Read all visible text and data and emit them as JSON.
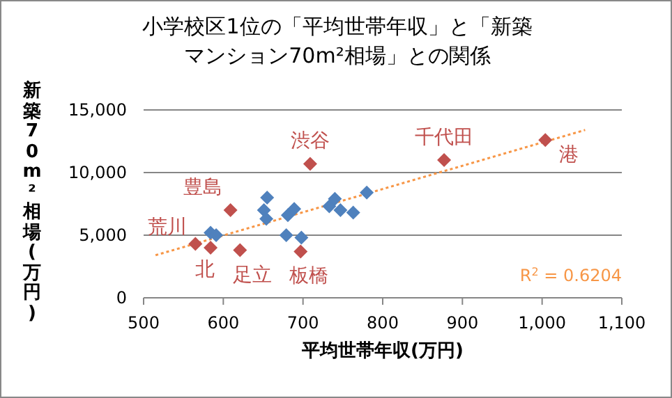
{
  "chart_data": {
    "type": "scatter",
    "title": "小学校区1位の「平均世帯年収」と「新築マンション70m²相場」との関係",
    "xlabel": "平均世帯年収(万円)",
    "ylabel": "新築70m²相場(万円)",
    "xlim": [
      500,
      1100
    ],
    "xticks": [
      {
        "value": 500,
        "label": "500"
      },
      {
        "value": 600,
        "label": "600"
      },
      {
        "value": 700,
        "label": "700"
      },
      {
        "value": 800,
        "label": "800"
      },
      {
        "value": 900,
        "label": "900"
      },
      {
        "value": 1000,
        "label": "1,000"
      },
      {
        "value": 1100,
        "label": "1,100"
      }
    ],
    "ylim": [
      0,
      15000
    ],
    "yticks": [
      {
        "value": 0,
        "label": "0"
      },
      {
        "value": 5000,
        "label": "5,000"
      },
      {
        "value": 10000,
        "label": "10,000"
      },
      {
        "value": 15000,
        "label": "15,000"
      }
    ],
    "grid": "y",
    "marker": "diamond",
    "series": [
      {
        "color": "#4f81bd",
        "x": [
          584,
          591,
          655,
          651,
          654,
          679,
          698,
          681,
          689,
          733,
          740,
          747,
          763,
          780
        ],
        "values": [
          5200,
          5000,
          8000,
          7000,
          6300,
          5000,
          4800,
          6600,
          7100,
          7300,
          7900,
          7000,
          6800,
          8400
        ]
      },
      {
        "color": "#c0504d",
        "x": [
          709,
          609,
          565,
          584,
          621,
          697,
          877,
          1004
        ],
        "values": [
          10700,
          7000,
          4300,
          4000,
          3800,
          3700,
          11000,
          12600
        ]
      },
      {
        "type": "line",
        "color": "#f79646",
        "line_style": "dotted",
        "marker": "none",
        "x": [
          515,
          1054
        ],
        "values": [
          3400,
          13400
        ]
      }
    ],
    "annotations": [
      {
        "text": "渋谷",
        "x": 709,
        "y": 10700
      },
      {
        "text": "豊島",
        "x": 609,
        "y": 7000
      },
      {
        "text": "荒川",
        "x": 565,
        "y": 4300
      },
      {
        "text": "北",
        "x": 584,
        "y": 4000
      },
      {
        "text": "足立",
        "x": 621,
        "y": 3800
      },
      {
        "text": "板橋",
        "x": 697,
        "y": 3700
      },
      {
        "text": "千代田",
        "x": 877,
        "y": 11000
      },
      {
        "text": "港",
        "x": 1004,
        "y": 12600
      },
      "R$^{2}$ = 0.6204"
    ]
  }
}
